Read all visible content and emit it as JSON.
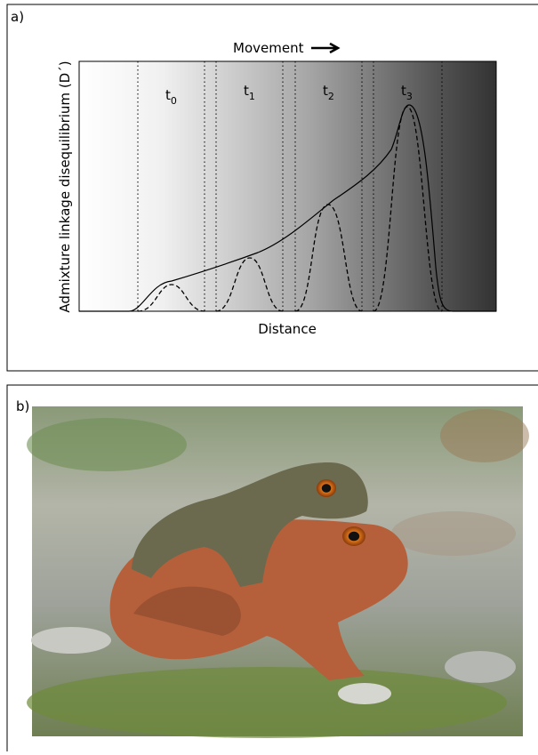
{
  "panel_a": {
    "label": "a)",
    "movement": "Movement",
    "time_labels": [
      {
        "letter": "t",
        "index": "0"
      },
      {
        "letter": "t",
        "index": "1"
      },
      {
        "letter": "t",
        "index": "2"
      },
      {
        "letter": "t",
        "index": "3"
      }
    ],
    "y_axis_label": "Admixture linkage disequilibrium (D´)",
    "x_axis_label": "Distance"
  },
  "panel_b": {
    "label": "b)"
  }
}
